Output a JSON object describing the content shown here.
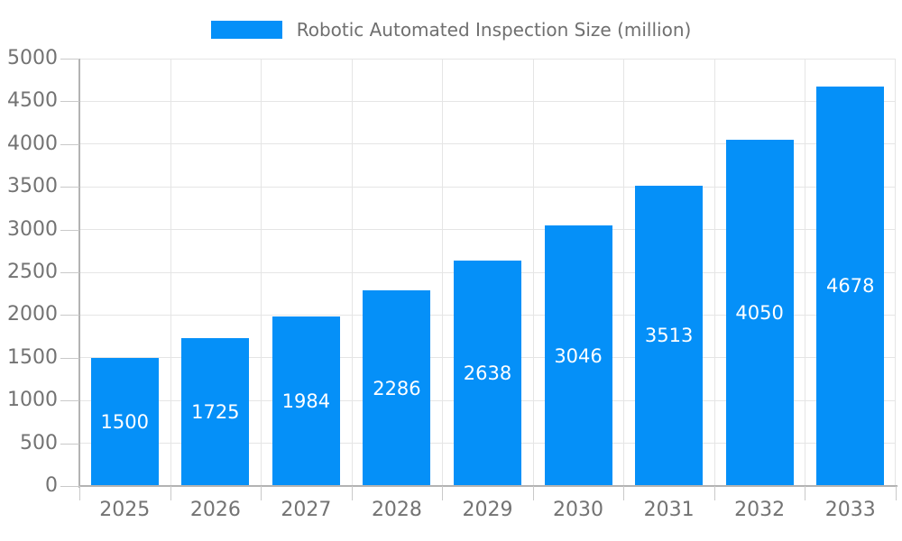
{
  "legend": {
    "label": "Robotic Automated Inspection Size (million)"
  },
  "chart_data": {
    "type": "bar",
    "title": "",
    "xlabel": "",
    "ylabel": "",
    "series_name": "Robotic Automated Inspection Size (million)",
    "categories": [
      "2025",
      "2026",
      "2027",
      "2028",
      "2029",
      "2030",
      "2031",
      "2032",
      "2033"
    ],
    "values": [
      1500,
      1725,
      1984,
      2286,
      2638,
      3046,
      3513,
      4050,
      4678
    ],
    "value_labels": [
      "1500",
      "1725",
      "1984",
      "2286",
      "2638",
      "3046",
      "3513",
      "4050",
      "4678"
    ],
    "ylim": [
      0,
      5000
    ],
    "y_tick_step": 500,
    "y_tick_labels": [
      "0",
      "500",
      "1000",
      "1500",
      "2000",
      "2500",
      "3000",
      "3500",
      "4000",
      "4500",
      "5000"
    ],
    "grid": true,
    "legend_position": "top"
  },
  "colors": {
    "bar": "#0590F8",
    "bar_value_text": "#FFFFFF",
    "grid": "#E5E5E5",
    "axis_line": "#B3B3B3",
    "tick": "#C9C9C9",
    "axis_label": "#737373",
    "legend_text": "#6F6F6F",
    "background": "#FFFFFF"
  }
}
